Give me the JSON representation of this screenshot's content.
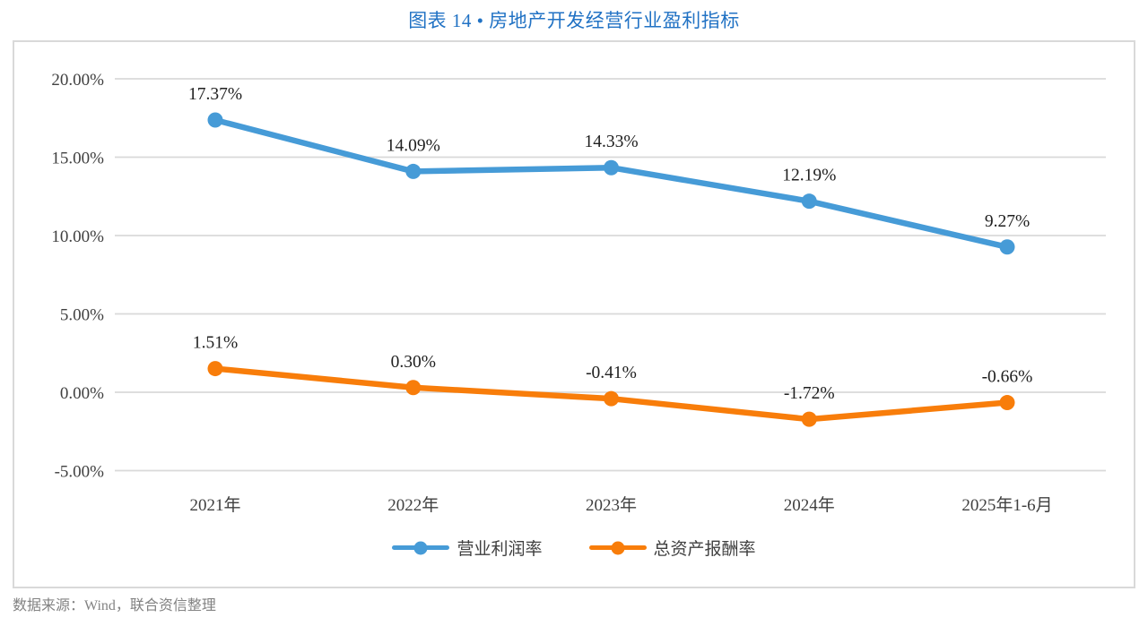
{
  "title": "图表 14 • 房地产开发经营行业盈利指标",
  "footer": "数据来源：Wind，联合资信整理",
  "colors": {
    "title_blue": "#2172C4",
    "gridline": "#D9D9D9",
    "box_border": "#D9D9D9",
    "axis_label": "#404040",
    "data_label": "#1F1F1F",
    "footer_text": "#828282"
  },
  "chart_data": {
    "type": "line",
    "title": "图表 14 • 房地产开发经营行业盈利指标",
    "categories": [
      "2021年",
      "2022年",
      "2023年",
      "2024年",
      "2025年1-6月"
    ],
    "series": [
      {
        "name": "营业利润率",
        "color": "#469BD7",
        "values": [
          17.37,
          14.09,
          14.33,
          12.19,
          9.27
        ],
        "labels": [
          "17.37%",
          "14.09%",
          "14.33%",
          "12.19%",
          "9.27%"
        ]
      },
      {
        "name": "总资产报酬率",
        "color": "#F87D0A",
        "values": [
          1.51,
          0.3,
          -0.41,
          -1.72,
          -0.66
        ],
        "labels": [
          "1.51%",
          "0.30%",
          "-0.41%",
          "-1.72%",
          "-0.66%"
        ]
      }
    ],
    "y_ticks": [
      "20.00%",
      "15.00%",
      "10.00%",
      "5.00%",
      "0.00%",
      "-5.00%"
    ],
    "y_tick_values": [
      20,
      15,
      10,
      5,
      0,
      -5
    ],
    "ylim": [
      -5,
      20
    ],
    "grid": true,
    "legend_position": "bottom"
  }
}
